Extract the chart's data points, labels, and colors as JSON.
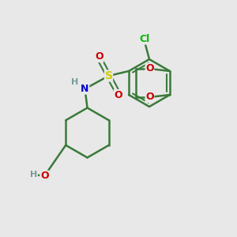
{
  "background_color": "#e8e8e8",
  "bond_color": "#3a7a3a",
  "atom_colors": {
    "Cl": "#00bb00",
    "O": "#cc0000",
    "S": "#cccc00",
    "N": "#0000cc",
    "H": "#7a9a9a"
  },
  "figsize": [
    3.0,
    3.0
  ],
  "dpi": 100
}
